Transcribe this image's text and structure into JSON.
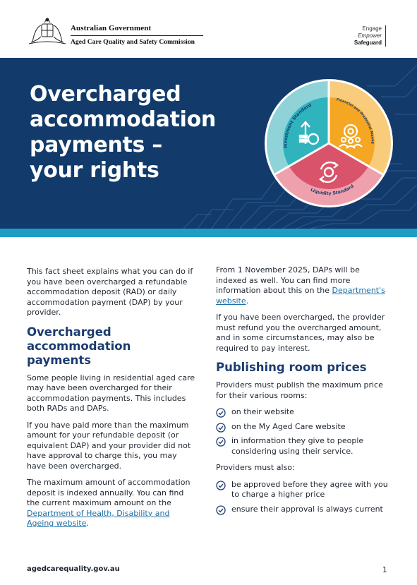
{
  "header": {
    "gov_name": "Australian Government",
    "commission": "Aged Care Quality and Safety Commission",
    "motto": [
      "Engage",
      "Empower",
      "Safeguard"
    ]
  },
  "banner": {
    "title_lines": [
      "Overcharged",
      "accommodation",
      "payments –",
      "your rights"
    ],
    "wheel_labels": {
      "investment": "Investment Standard",
      "financial": "Financial and Prudential Management Standard",
      "liquidity": "Liquidity Standard"
    },
    "colors": {
      "banner_bg": "#123b6b",
      "stripe": "#1f9ec4",
      "teal": "#2fb3bd",
      "amber": "#f5a623",
      "rose": "#d9546a"
    }
  },
  "left": {
    "intro": "This fact sheet explains what you can do if you have been overcharged a refundable accommodation deposit (RAD) or daily accommodation payment (DAP) by your provider.",
    "heading": "Overcharged accommodation payments",
    "p1": "Some people living in residential aged care may have been overcharged for their accommodation payments. This includes both RADs and DAPs.",
    "p2": "If you have paid more than the maximum amount for your refundable deposit (or equivalent DAP) and your provider did not have approval to charge this, you may have been overcharged.",
    "p3_text": "The maximum amount of accommodation deposit is indexed annually. You can find the current maximum amount on the ",
    "p3_link": "Department of Health, Disability and Ageing website",
    "p3_end": "."
  },
  "right": {
    "p1_text": "From 1 November 2025, DAPs will be indexed as well. You can find more information about this on the ",
    "p1_link": "Department's website",
    "p1_end": ".",
    "p2": "If you have been overcharged, the provider must refund you the overcharged amount, and in some circumstances, may also be required to pay interest.",
    "heading": "Publishing room prices",
    "p3": "Providers must publish the maximum price for their various rooms:",
    "list1": [
      "on their website",
      "on the My Aged Care website",
      "in information they give to people considering using their service."
    ],
    "p4": "Providers must also:",
    "list2": [
      "be approved before they agree with you to charge a higher price",
      "ensure their approval is always current"
    ]
  },
  "footer": {
    "url": "agedcarequality.gov.au",
    "page": "1"
  }
}
